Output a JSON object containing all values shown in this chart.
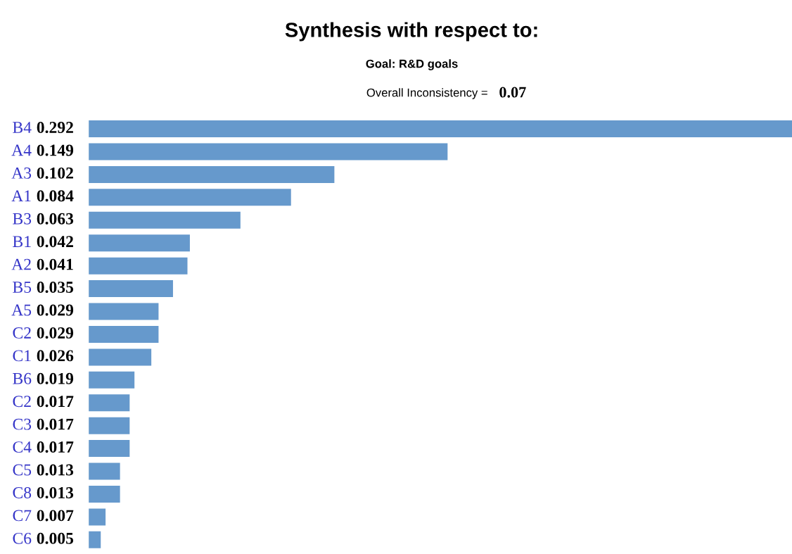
{
  "chart_data": {
    "type": "bar",
    "orientation": "horizontal",
    "title": "Synthesis with respect to:",
    "subtitle": "Goal: R&D goals",
    "annotations": [
      "Overall Inconsistency =",
      "0.07"
    ],
    "categories": [
      "B4",
      "A4",
      "A3",
      "A1",
      "B3",
      "B1",
      "A2",
      "B5",
      "A5",
      "C2",
      "C1",
      "B6",
      "C2",
      "C3",
      "C4",
      "C5",
      "C8",
      "C7",
      "C6"
    ],
    "values": [
      0.292,
      0.149,
      0.102,
      0.084,
      0.063,
      0.042,
      0.041,
      0.035,
      0.029,
      0.029,
      0.026,
      0.019,
      0.017,
      0.017,
      0.017,
      0.013,
      0.013,
      0.007,
      0.005
    ],
    "color": "#6699cc",
    "data_labels": true
  }
}
